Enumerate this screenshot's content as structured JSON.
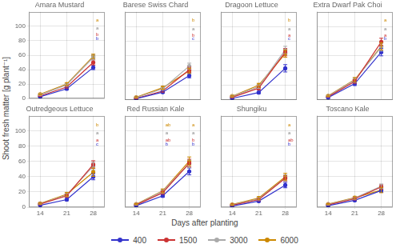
{
  "chart_data": [
    {
      "type": "line",
      "title": "Amara Mustard",
      "x": [
        14,
        21,
        28
      ],
      "series": [
        {
          "name": "400",
          "color": "#3333cc",
          "values": [
            2.5,
            13.5,
            43.0
          ],
          "errors": [
            0.5,
            1.5,
            3.0
          ]
        },
        {
          "name": "1500",
          "color": "#cc3333",
          "values": [
            3.5,
            16.0,
            50.0
          ],
          "errors": [
            0.5,
            1.5,
            3.5
          ]
        },
        {
          "name": "3000",
          "color": "#aaaaaa",
          "values": [
            5.0,
            19.0,
            57.0
          ],
          "errors": [
            0.8,
            2.0,
            3.5
          ]
        },
        {
          "name": "6000",
          "color": "#cc8800",
          "values": [
            6.0,
            20.0,
            58.5
          ],
          "errors": [
            0.8,
            1.8,
            3.0
          ]
        }
      ],
      "xlim": [
        11,
        31
      ],
      "xticks": [
        14,
        21,
        28
      ],
      "ylim": [
        0,
        120
      ],
      "yticks": [
        0,
        20,
        40,
        60,
        80,
        100
      ],
      "grid": true,
      "marker": "circle",
      "tick_labels": "y",
      "annotations": [
        {
          "text": "b",
          "x": 28.7,
          "y": 83,
          "color": "#3333cc"
        },
        {
          "text": "b",
          "x": 28.7,
          "y": 88,
          "color": "#cc3333"
        },
        {
          "text": "a",
          "x": 28.7,
          "y": 97,
          "color": "#888888"
        },
        {
          "text": "a",
          "x": 28.7,
          "y": 108,
          "color": "#cc8800"
        }
      ]
    },
    {
      "type": "line",
      "title": "Barese Swiss Chard",
      "x": [
        14,
        21,
        28
      ],
      "series": [
        {
          "name": "400",
          "color": "#3333cc",
          "values": [
            1.5,
            10.5,
            33.0
          ],
          "errors": [
            0.3,
            1.2,
            3.0
          ]
        },
        {
          "name": "1500",
          "color": "#cc3333",
          "values": [
            2.0,
            12.0,
            41.0
          ],
          "errors": [
            0.4,
            1.5,
            3.5
          ]
        },
        {
          "name": "3000",
          "color": "#aaaaaa",
          "values": [
            3.0,
            15.0,
            46.0
          ],
          "errors": [
            0.5,
            1.8,
            4.0
          ]
        },
        {
          "name": "6000",
          "color": "#cc8800",
          "values": [
            3.5,
            16.5,
            39.5
          ],
          "errors": [
            0.6,
            2.0,
            3.5
          ]
        }
      ],
      "xlim": [
        11,
        31
      ],
      "xticks": [
        14,
        21,
        28
      ],
      "ylim": [
        0,
        120
      ],
      "yticks": [
        0,
        20,
        40,
        60,
        80,
        100
      ],
      "grid": true,
      "marker": "circle",
      "tick_labels": false,
      "annotations": [
        {
          "text": "c",
          "x": 28.7,
          "y": 83,
          "color": "#3333cc"
        },
        {
          "text": "b",
          "x": 28.7,
          "y": 88,
          "color": "#cc3333"
        },
        {
          "text": "a",
          "x": 28.7,
          "y": 97,
          "color": "#888888"
        },
        {
          "text": "b",
          "x": 28.7,
          "y": 108,
          "color": "#cc8800"
        }
      ]
    },
    {
      "type": "line",
      "title": "Dragoon Lettuce",
      "x": [
        14,
        21,
        28
      ],
      "series": [
        {
          "name": "400",
          "color": "#3333cc",
          "values": [
            2.0,
            10.0,
            43.0
          ],
          "errors": [
            0.5,
            1.5,
            5.0
          ]
        },
        {
          "name": "1500",
          "color": "#cc3333",
          "values": [
            3.5,
            16.0,
            65.0
          ],
          "errors": [
            0.8,
            2.5,
            5.0
          ]
        },
        {
          "name": "3000",
          "color": "#aaaaaa",
          "values": [
            4.5,
            18.0,
            68.0
          ],
          "errors": [
            0.8,
            2.5,
            5.0
          ]
        },
        {
          "name": "6000",
          "color": "#cc8800",
          "values": [
            5.0,
            20.0,
            63.0
          ],
          "errors": [
            1.0,
            2.5,
            5.0
          ]
        }
      ],
      "xlim": [
        11,
        31
      ],
      "xticks": [
        14,
        21,
        28
      ],
      "ylim": [
        0,
        120
      ],
      "yticks": [
        0,
        20,
        40,
        60,
        80,
        100
      ],
      "grid": true,
      "marker": "circle",
      "tick_labels": false,
      "annotations": [
        {
          "text": "c",
          "x": 28.7,
          "y": 83,
          "color": "#3333cc"
        },
        {
          "text": "a",
          "x": 28.7,
          "y": 88,
          "color": "#cc3333"
        },
        {
          "text": "a",
          "x": 28.7,
          "y": 97,
          "color": "#888888"
        },
        {
          "text": "b",
          "x": 28.7,
          "y": 108,
          "color": "#cc8800"
        }
      ]
    },
    {
      "type": "line",
      "title": "Extra Dwarf Pak Choi",
      "x": [
        14,
        21,
        28
      ],
      "series": [
        {
          "name": "400",
          "color": "#3333cc",
          "values": [
            3.0,
            22.0,
            65.0
          ],
          "errors": [
            0.5,
            2.5,
            5.0
          ]
        },
        {
          "name": "1500",
          "color": "#cc3333",
          "values": [
            4.0,
            25.0,
            79.0
          ],
          "errors": [
            0.6,
            2.5,
            5.0
          ]
        },
        {
          "name": "3000",
          "color": "#aaaaaa",
          "values": [
            5.0,
            27.0,
            72.0
          ],
          "errors": [
            0.8,
            3.0,
            5.5
          ]
        },
        {
          "name": "6000",
          "color": "#cc8800",
          "values": [
            5.5,
            27.5,
            73.0
          ],
          "errors": [
            0.9,
            3.0,
            5.0
          ]
        }
      ],
      "xlim": [
        11,
        31
      ],
      "xticks": [
        14,
        21,
        28
      ],
      "ylim": [
        0,
        120
      ],
      "yticks": [
        0,
        20,
        40,
        60,
        80,
        100
      ],
      "grid": true,
      "marker": "circle",
      "tick_labels": false,
      "annotations": [
        {
          "text": "b",
          "x": 28.7,
          "y": 83,
          "color": "#3333cc"
        },
        {
          "text": "a",
          "x": 28.7,
          "y": 88,
          "color": "#cc3333"
        },
        {
          "text": "a",
          "x": 28.7,
          "y": 97,
          "color": "#888888"
        },
        {
          "text": "a",
          "x": 28.7,
          "y": 108,
          "color": "#cc8800"
        }
      ]
    },
    {
      "type": "line",
      "title": "Outredgeous Lettuce",
      "x": [
        14,
        21,
        28
      ],
      "series": [
        {
          "name": "400",
          "color": "#3333cc",
          "values": [
            2.5,
            10.0,
            40.0
          ],
          "errors": [
            0.5,
            1.5,
            4.0
          ]
        },
        {
          "name": "1500",
          "color": "#cc3333",
          "values": [
            4.0,
            15.0,
            56.0
          ],
          "errors": [
            0.8,
            2.0,
            5.0
          ]
        },
        {
          "name": "3000",
          "color": "#aaaaaa",
          "values": [
            4.5,
            16.0,
            54.0
          ],
          "errors": [
            0.8,
            2.0,
            5.0
          ]
        },
        {
          "name": "6000",
          "color": "#cc8800",
          "values": [
            5.0,
            17.0,
            46.0
          ],
          "errors": [
            1.0,
            2.5,
            5.5
          ]
        }
      ],
      "xlim": [
        11,
        31
      ],
      "xticks": [
        14,
        21,
        28
      ],
      "ylim": [
        0,
        120
      ],
      "yticks": [
        0,
        20,
        40,
        60,
        80,
        100
      ],
      "grid": true,
      "marker": "circle",
      "annotations": [
        {
          "text": "c",
          "x": 28.7,
          "y": 83,
          "color": "#3333cc"
        },
        {
          "text": "a",
          "x": 28.7,
          "y": 88,
          "color": "#cc3333"
        },
        {
          "text": "a",
          "x": 28.7,
          "y": 97,
          "color": "#888888"
        },
        {
          "text": "b",
          "x": 28.7,
          "y": 108,
          "color": "#cc8800"
        }
      ]
    },
    {
      "type": "line",
      "title": "Red Russian Kale",
      "x": [
        14,
        21,
        28
      ],
      "series": [
        {
          "name": "400",
          "color": "#3333cc",
          "values": [
            2.0,
            15.0,
            47.0
          ],
          "errors": [
            0.4,
            2.0,
            4.5
          ]
        },
        {
          "name": "1500",
          "color": "#cc3333",
          "values": [
            3.0,
            19.0,
            58.0
          ],
          "errors": [
            0.5,
            2.0,
            5.0
          ]
        },
        {
          "name": "3000",
          "color": "#aaaaaa",
          "values": [
            3.5,
            21.0,
            57.0
          ],
          "errors": [
            0.6,
            2.5,
            5.0
          ]
        },
        {
          "name": "6000",
          "color": "#cc8800",
          "values": [
            4.0,
            21.5,
            60.5
          ],
          "errors": [
            0.7,
            2.5,
            5.5
          ]
        }
      ],
      "xlim": [
        11,
        31
      ],
      "xticks": [
        14,
        21,
        28
      ],
      "ylim": [
        0,
        120
      ],
      "yticks": [
        0,
        20,
        40,
        60,
        80,
        100
      ],
      "grid": true,
      "marker": "circle",
      "tick_labels": "x",
      "annotations": [
        {
          "text": "b",
          "x": 28.7,
          "y": 83,
          "color": "#3333cc"
        },
        {
          "text": "b",
          "x": 28.7,
          "y": 88,
          "color": "#cc3333"
        },
        {
          "text": "a",
          "x": 28.7,
          "y": 97,
          "color": "#888888"
        },
        {
          "text": "a",
          "x": 28.7,
          "y": 108,
          "color": "#cc8800"
        },
        {
          "text": "b",
          "x": 21.7,
          "y": 83,
          "color": "#3333cc"
        },
        {
          "text": "ab",
          "x": 21.7,
          "y": 88,
          "color": "#cc3333"
        },
        {
          "text": "a",
          "x": 21.7,
          "y": 97,
          "color": "#888888"
        },
        {
          "text": "ab",
          "x": 21.7,
          "y": 108,
          "color": "#cc8800"
        }
      ]
    },
    {
      "type": "line",
      "title": "Shungiku",
      "x": [
        14,
        21,
        28
      ],
      "series": [
        {
          "name": "400",
          "color": "#3333cc",
          "values": [
            1.5,
            8.0,
            29.0
          ],
          "errors": [
            0.3,
            1.0,
            3.5
          ]
        },
        {
          "name": "1500",
          "color": "#cc3333",
          "values": [
            2.5,
            10.0,
            38.0
          ],
          "errors": [
            0.5,
            1.5,
            4.0
          ]
        },
        {
          "name": "3000",
          "color": "#aaaaaa",
          "values": [
            3.0,
            11.0,
            38.5
          ],
          "errors": [
            0.6,
            1.5,
            4.0
          ]
        },
        {
          "name": "6000",
          "color": "#cc8800",
          "values": [
            3.5,
            12.0,
            40.0
          ],
          "errors": [
            0.7,
            1.8,
            4.5
          ]
        }
      ],
      "xlim": [
        11,
        31
      ],
      "xticks": [
        14,
        21,
        28
      ],
      "ylim": [
        0,
        120
      ],
      "yticks": [
        0,
        20,
        40,
        60,
        80,
        100
      ],
      "grid": true,
      "marker": "circle",
      "tick_labels": "x",
      "annotations": [
        {
          "text": "b",
          "x": 28.7,
          "y": 83,
          "color": "#3333cc"
        },
        {
          "text": "ab",
          "x": 28.7,
          "y": 88,
          "color": "#cc3333"
        },
        {
          "text": "a",
          "x": 28.7,
          "y": 97,
          "color": "#888888"
        },
        {
          "text": "a",
          "x": 28.7,
          "y": 108,
          "color": "#cc8800"
        }
      ]
    },
    {
      "type": "line",
      "title": "Toscano Kale",
      "x": [
        14,
        21,
        28
      ],
      "series": [
        {
          "name": "400",
          "color": "#3333cc",
          "values": [
            2.0,
            9.0,
            22.0
          ],
          "errors": [
            0.4,
            1.2,
            2.5
          ]
        },
        {
          "name": "1500",
          "color": "#cc3333",
          "values": [
            3.0,
            11.0,
            26.5
          ],
          "errors": [
            0.5,
            1.5,
            3.0
          ]
        },
        {
          "name": "3000",
          "color": "#aaaaaa",
          "values": [
            3.5,
            12.0,
            27.5
          ],
          "errors": [
            0.6,
            1.5,
            3.0
          ]
        },
        {
          "name": "6000",
          "color": "#cc8800",
          "values": [
            4.0,
            12.5,
            22.5
          ],
          "errors": [
            0.7,
            1.8,
            3.5
          ]
        }
      ],
      "xlim": [
        11,
        31
      ],
      "xticks": [
        14,
        21,
        28
      ],
      "ylim": [
        0,
        120
      ],
      "yticks": [
        0,
        20,
        40,
        60,
        80,
        100
      ],
      "grid": true,
      "marker": "circle",
      "tick_labels": "x"
    }
  ],
  "xlabel": "Days after planting",
  "ylabel": "Shoot fresh matter [g plant⁻¹]",
  "legend": "bottom"
}
